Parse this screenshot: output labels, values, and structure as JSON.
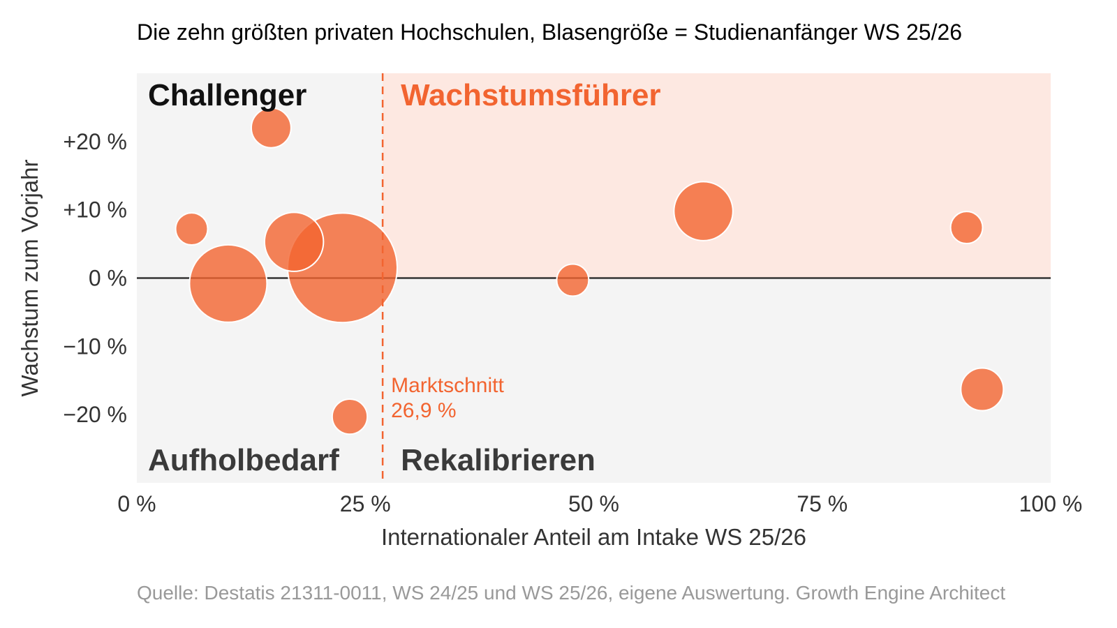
{
  "chart_data": {
    "type": "scatter",
    "title": "Die zehn größten privaten Hochschulen, Blasengröße = Studienanfänger WS 25/26",
    "xlabel": "Internationaler Anteil am Intake WS 25/26",
    "ylabel": "Wachstum zum Vorjahr",
    "xlim": [
      0,
      100
    ],
    "ylim": [
      -30,
      30
    ],
    "x_ticks": [
      {
        "value": 0,
        "label": "0 %"
      },
      {
        "value": 25,
        "label": "25 %"
      },
      {
        "value": 50,
        "label": "50 %"
      },
      {
        "value": 75,
        "label": "75 %"
      },
      {
        "value": 100,
        "label": "100 %"
      }
    ],
    "y_ticks": [
      {
        "value": 20,
        "label": "+20 %"
      },
      {
        "value": 10,
        "label": "+10 %"
      },
      {
        "value": 0,
        "label": "0 %"
      },
      {
        "value": -10,
        "label": "−10 %"
      },
      {
        "value": -20,
        "label": "−20 %"
      }
    ],
    "grid": false,
    "points": [
      {
        "x": 14.7,
        "y": 22.0,
        "size": 1000
      },
      {
        "x": 6.0,
        "y": 7.2,
        "size": 650
      },
      {
        "x": 17.2,
        "y": 5.3,
        "size": 2200
      },
      {
        "x": 22.5,
        "y": 1.5,
        "size": 7600
      },
      {
        "x": 10.0,
        "y": -0.8,
        "size": 3800
      },
      {
        "x": 23.3,
        "y": -20.3,
        "size": 780
      },
      {
        "x": 47.7,
        "y": -0.3,
        "size": 650
      },
      {
        "x": 62.0,
        "y": 9.8,
        "size": 2200
      },
      {
        "x": 90.8,
        "y": 7.4,
        "size": 650
      },
      {
        "x": 92.5,
        "y": -16.3,
        "size": 1150
      }
    ],
    "reference_line": {
      "x": 26.9,
      "label_line1": "Marktschnitt",
      "label_line2": "26,9 %"
    },
    "quadrants": {
      "top_left": "Challenger",
      "top_right": "Wachstumsführer",
      "bottom_left": "Aufholbedarf",
      "bottom_right": "Rekalibrieren"
    },
    "colors": {
      "bubble": "#f26430",
      "highlight_bg": "#fde8e1",
      "plot_bg": "#f4f4f4",
      "zero_line": "#333333",
      "quad_dark": "#111111",
      "quad_mid": "#3a3a3a",
      "quad_accent": "#f26430"
    }
  },
  "source": "Quelle: Destatis 21311-0011, WS 24/25 und WS 25/26, eigene Auswertung. Growth Engine Architect"
}
